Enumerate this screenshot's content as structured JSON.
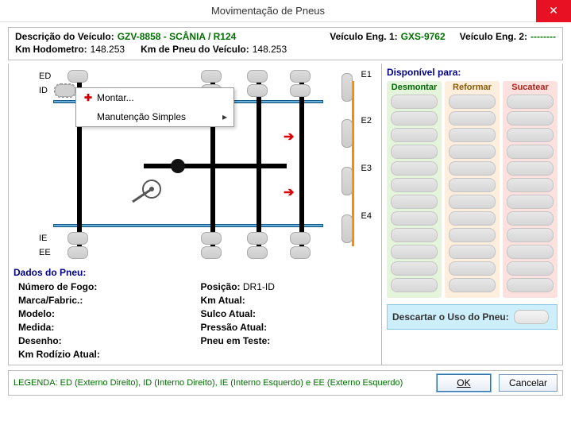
{
  "window": {
    "title": "Movimentação de Pneus"
  },
  "header": {
    "desc_label": "Descrição do Veículo:",
    "desc_value": "GZV-8858 - SCÂNIA / R124",
    "eng1_label": "Veículo Eng. 1:",
    "eng1_value": "GXS-9762",
    "eng2_label": "Veículo Eng. 2:",
    "eng2_value": "--------",
    "hodo_label": "Km Hodometro:",
    "hodo_value": "148.253",
    "kmpneu_label": "Km de Pneu do Veículo:",
    "kmpneu_value": "148.253"
  },
  "axles": {
    "left_labels": {
      "ED": "ED",
      "ID": "ID",
      "IE": "IE",
      "EE": "EE"
    },
    "right_labels": {
      "E1": "E1",
      "E2": "E2",
      "E3": "E3",
      "E4": "E4"
    }
  },
  "context_menu": {
    "mount": "Montar...",
    "simple_maint": "Manutenção Simples"
  },
  "tire_data": {
    "section": "Dados do Pneu:",
    "fire_no_k": "Número de Fogo:",
    "fire_no_v": "",
    "pos_k": "Posição:",
    "pos_v": "DR1-ID",
    "brand_k": "Marca/Fabric.:",
    "brand_v": "",
    "kmatual_k": "Km Atual:",
    "kmatual_v": "",
    "model_k": "Modelo:",
    "model_v": "",
    "sulco_k": "Sulco Atual:",
    "sulco_v": "",
    "medida_k": "Medida:",
    "medida_v": "",
    "press_k": "Pressão Atual:",
    "press_v": "",
    "desenho_k": "Desenho:",
    "desenho_v": "",
    "teste_k": "Pneu em Teste:",
    "teste_v": "",
    "rodizio_k": "Km Rodízio Atual:",
    "rodizio_v": ""
  },
  "available": {
    "title": "Disponível para:",
    "col_a": "Desmontar",
    "col_b": "Reformar",
    "col_c": "Sucatear",
    "slots_per_col": 12,
    "discard_label": "Descartar o Uso do Pneu:"
  },
  "legend": "LEGENDA: ED (Externo Direito), ID (Interno Direito), IE (Interno Esquerdo) e EE (Externo Esquerdo)",
  "buttons": {
    "ok": "OK",
    "cancel": "Cancelar"
  },
  "colors": {
    "link": "#000080",
    "value": "#007000",
    "colA_bg": "#e4f5dc",
    "colB_bg": "#fdeedd",
    "colC_bg": "#fde1de"
  }
}
